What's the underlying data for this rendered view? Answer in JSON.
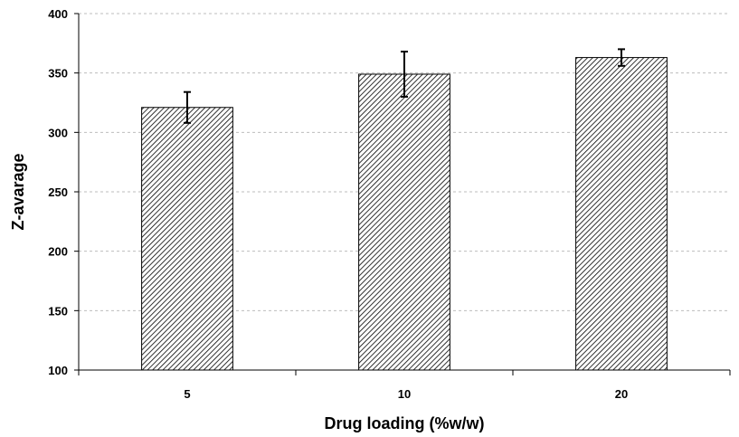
{
  "chart_data": {
    "type": "bar",
    "categories": [
      "5",
      "10",
      "20"
    ],
    "series": [
      {
        "values": [
          321,
          349,
          363
        ],
        "error": [
          13,
          19,
          7
        ]
      }
    ],
    "xlabel": "Drug loading (%w/w)",
    "ylabel": "Z-avarage",
    "ylim": [
      100,
      400
    ],
    "yticks": [
      100,
      150,
      200,
      250,
      300,
      350,
      400
    ],
    "grid": true,
    "legend": "none",
    "fill": "diagonal-hatch",
    "bar_color": "#ffffff",
    "hatch_color": "#000000",
    "grid_color": "#bdbdbd"
  }
}
